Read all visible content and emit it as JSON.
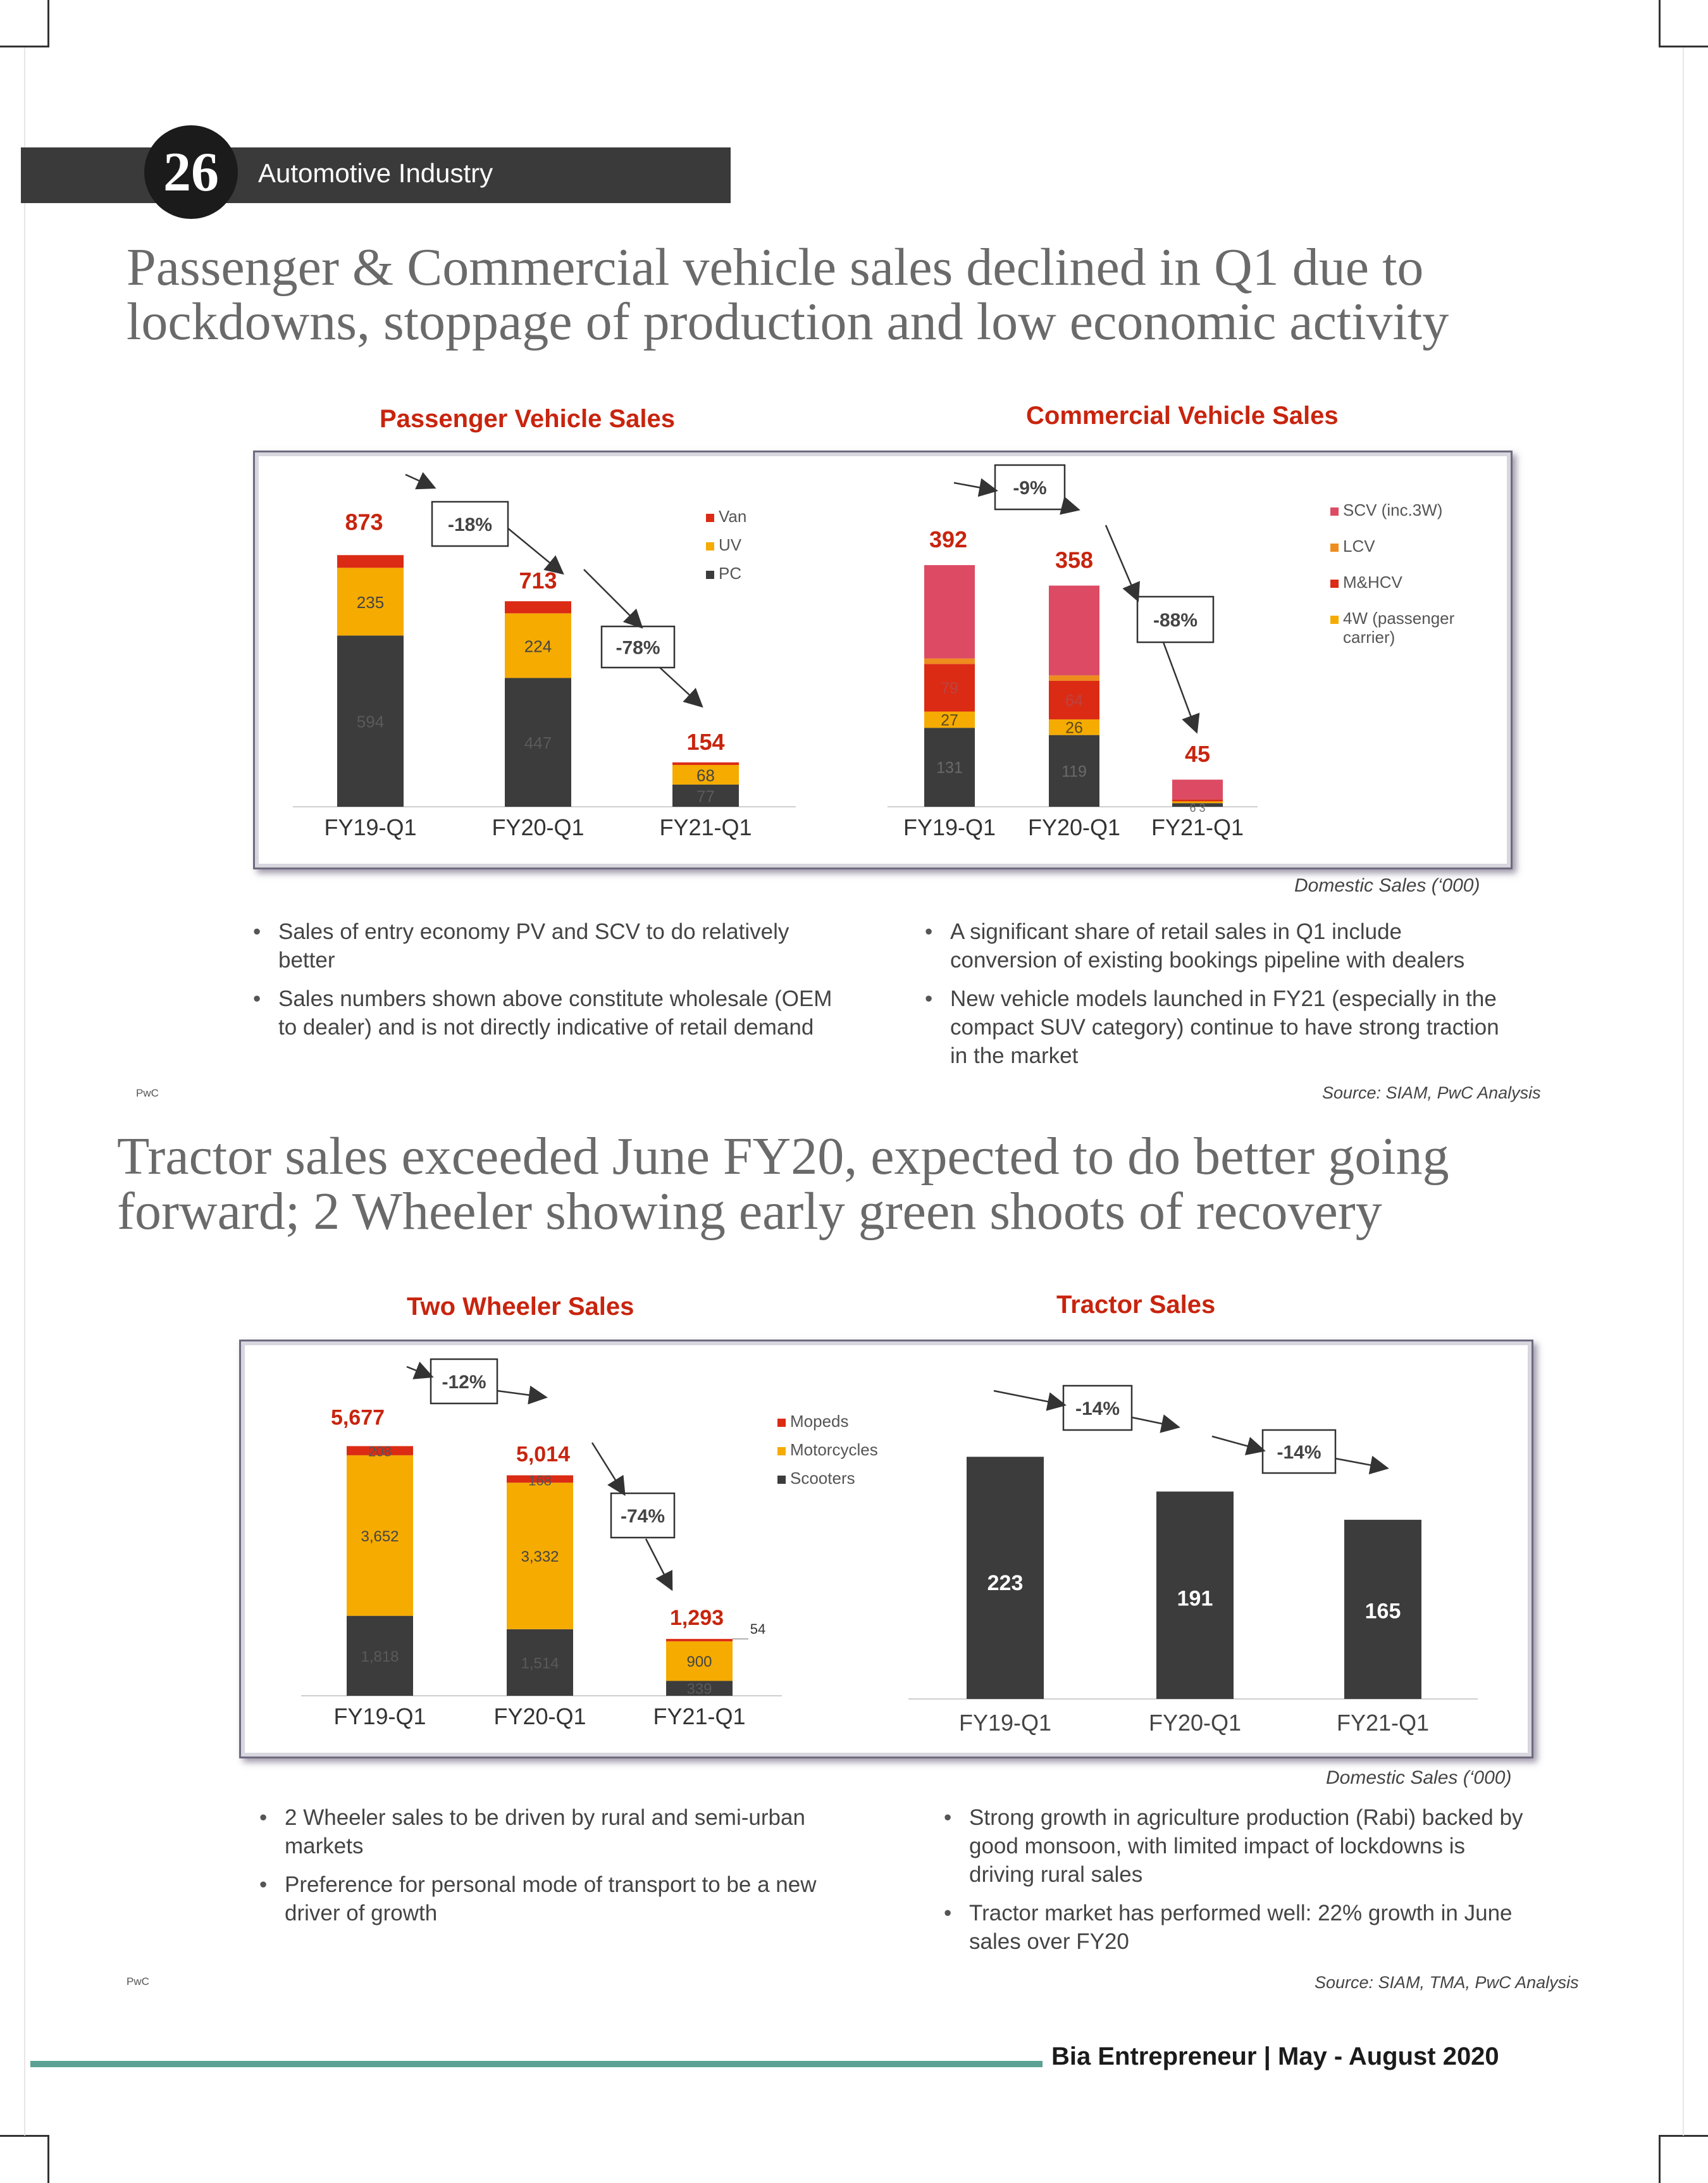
{
  "header": {
    "page_number": "26",
    "section": "Automotive Industry"
  },
  "section1": {
    "headline_line1": "Passenger & Commercial vehicle sales declined in Q1 due to",
    "headline_line2": "lockdowns, stoppage of production and low economic activity",
    "note": "Domestic Sales (‘000)",
    "bullets_left": [
      "Sales of entry economy PV and SCV to do relatively better",
      "Sales numbers shown above constitute wholesale (OEM to dealer) and is not directly indicative of retail demand"
    ],
    "bullets_right": [
      "A significant share of retail sales in Q1 include conversion of existing bookings pipeline with dealers",
      "New vehicle models launched in FY21 (especially in the compact SUV category) continue to have strong traction in the market"
    ],
    "pwc": "PwC",
    "source": "Source: SIAM, PwC Analysis"
  },
  "section2": {
    "headline_line1": "Tractor sales exceeded June FY20, expected to do better going",
    "headline_line2": "forward; 2 Wheeler showing early green shoots of recovery",
    "note": "Domestic Sales (‘000)",
    "bullets_left": [
      "2 Wheeler sales to be driven by rural and semi-urban markets",
      "Preference for personal mode of transport to be a new driver of growth"
    ],
    "bullets_right": [
      "Strong growth in agriculture production (Rabi) backed by good monsoon, with limited impact of lockdowns is driving rural sales",
      "Tractor market has performed well: 22% growth in June sales over FY20"
    ],
    "pwc": "PwC",
    "source": "Source: SIAM, TMA, PwC Analysis"
  },
  "footer": {
    "text": "Bia Entrepreneur | May - August 2020"
  },
  "chart_data": [
    {
      "type": "bar",
      "stacked": true,
      "title": "Passenger Vehicle Sales",
      "categories": [
        "FY19-Q1",
        "FY20-Q1",
        "FY21-Q1"
      ],
      "series": [
        {
          "name": "PC",
          "color": "#3c3c3c",
          "values": [
            594,
            447,
            77
          ],
          "labels": [
            "594",
            "447",
            "77"
          ]
        },
        {
          "name": "UV",
          "color": "#f5ab00",
          "values": [
            235,
            224,
            68
          ],
          "labels": [
            "235",
            "224",
            "68"
          ]
        },
        {
          "name": "Van",
          "color": "#db2b14",
          "values": [
            44,
            42,
            9
          ],
          "labels": [
            "",
            "",
            ""
          ]
        }
      ],
      "totals": [
        "873",
        "713",
        "154"
      ],
      "ymax": 900,
      "changes": [
        "-18%",
        "-78%"
      ],
      "legend": "right"
    },
    {
      "type": "bar",
      "stacked": true,
      "title": "Commercial Vehicle Sales",
      "categories": [
        "FY19-Q1",
        "FY20-Q1",
        "FY21-Q1"
      ],
      "series": [
        {
          "name": "4W (passenger carrier)",
          "color": "#f5ab00",
          "values": [
            27,
            26,
            3
          ],
          "labels": [
            "27",
            "26",
            ""
          ]
        },
        {
          "name": "M&HCV",
          "color": "#db2b14",
          "values": [
            79,
            64,
            3
          ],
          "labels": [
            "79",
            "64",
            ""
          ]
        },
        {
          "name": "LCV",
          "color": "#ee8c1e",
          "values": [
            131,
            119,
            6
          ],
          "labels": [
            "131",
            "119",
            "6 3"
          ]
        },
        {
          "name": "SCV (inc.3W)",
          "color": "#dc4b63",
          "values": [
            155,
            149,
            33
          ],
          "labels": [
            "",
            "",
            ""
          ]
        }
      ],
      "stack_order": [
        "LCV",
        "4W (passenger carrier)",
        "M&HCV",
        "LCV_band",
        "SCV (inc.3W)"
      ],
      "totals": [
        "392",
        "358",
        "45"
      ],
      "ymax": 420,
      "changes": [
        "-9%",
        "-88%"
      ],
      "legend": "right"
    },
    {
      "type": "bar",
      "stacked": true,
      "title": "Two Wheeler Sales",
      "categories": [
        "FY19-Q1",
        "FY20-Q1",
        "FY21-Q1"
      ],
      "series": [
        {
          "name": "Scooters",
          "color": "#3c3c3c",
          "values": [
            1818,
            1514,
            339
          ],
          "labels": [
            "1,818",
            "1,514",
            "339"
          ]
        },
        {
          "name": "Motorcycles",
          "color": "#f5ab00",
          "values": [
            3652,
            3332,
            900
          ],
          "labels": [
            "3,652",
            "3,332",
            "900"
          ]
        },
        {
          "name": "Mopeds",
          "color": "#db2b14",
          "values": [
            208,
            168,
            54
          ],
          "labels": [
            "208",
            "168",
            "54"
          ]
        }
      ],
      "totals": [
        "5,677",
        "5,014",
        "1,293"
      ],
      "ymax": 5900,
      "changes": [
        "-12%",
        "-74%"
      ],
      "legend": "right"
    },
    {
      "type": "bar",
      "title": "Tractor Sales",
      "categories": [
        "FY19-Q1",
        "FY20-Q1",
        "FY21-Q1"
      ],
      "series": [
        {
          "name": "",
          "color": "#3c3c3c",
          "values": [
            223,
            191,
            165
          ],
          "labels": [
            "223",
            "191",
            "165"
          ]
        }
      ],
      "ymax": 236,
      "changes": [
        "-14%",
        "-14%"
      ]
    }
  ]
}
